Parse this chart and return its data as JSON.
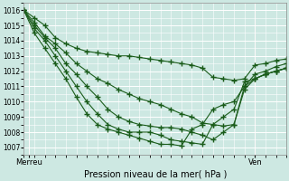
{
  "xlabel": "Pression niveau de la mer( hPa )",
  "xlim": [
    0,
    100
  ],
  "ylim": [
    1006.5,
    1016.5
  ],
  "yticks": [
    1007,
    1008,
    1009,
    1010,
    1011,
    1012,
    1013,
    1014,
    1015,
    1016
  ],
  "xtick_labels": [
    "Merreu",
    "Ven"
  ],
  "xtick_positions": [
    2,
    88
  ],
  "background_color": "#cde8e2",
  "grid_color": "#ffffff",
  "line_color": "#1a5c1a",
  "lines": [
    {
      "x": [
        0,
        4,
        8,
        12,
        16,
        20,
        24,
        28,
        32,
        36,
        40,
        44,
        48,
        52,
        56,
        60,
        64,
        68,
        72,
        76,
        80,
        84,
        88,
        92,
        96,
        100
      ],
      "y": [
        1016.0,
        1015.5,
        1015.0,
        1014.2,
        1013.8,
        1013.5,
        1013.3,
        1013.2,
        1013.1,
        1013.0,
        1013.0,
        1012.9,
        1012.8,
        1012.7,
        1012.6,
        1012.5,
        1012.4,
        1012.2,
        1011.6,
        1011.5,
        1011.4,
        1011.5,
        1012.4,
        1012.5,
        1012.7,
        1012.8
      ]
    },
    {
      "x": [
        0,
        4,
        8,
        12,
        16,
        20,
        24,
        28,
        32,
        36,
        40,
        44,
        48,
        52,
        56,
        60,
        64,
        68,
        72,
        76,
        80,
        84,
        88,
        92,
        96,
        100
      ],
      "y": [
        1016.0,
        1015.2,
        1014.3,
        1013.8,
        1013.2,
        1012.5,
        1012.0,
        1011.5,
        1011.2,
        1010.8,
        1010.5,
        1010.2,
        1010.0,
        1009.8,
        1009.5,
        1009.2,
        1009.0,
        1008.6,
        1008.5,
        1008.4,
        1008.5,
        1011.0,
        1011.8,
        1012.0,
        1012.3,
        1012.5
      ]
    },
    {
      "x": [
        0,
        4,
        8,
        12,
        16,
        20,
        24,
        28,
        32,
        36,
        40,
        44,
        48,
        52,
        56,
        60,
        64,
        68,
        72,
        76,
        80,
        84,
        88,
        92,
        96,
        100
      ],
      "y": [
        1016.0,
        1015.0,
        1014.2,
        1013.5,
        1012.5,
        1011.8,
        1011.0,
        1010.3,
        1009.5,
        1009.0,
        1008.7,
        1008.5,
        1008.4,
        1008.3,
        1008.3,
        1008.2,
        1008.0,
        1007.8,
        1007.5,
        1008.0,
        1008.5,
        1010.8,
        1011.5,
        1011.8,
        1012.0,
        1012.2
      ]
    },
    {
      "x": [
        0,
        4,
        8,
        12,
        16,
        20,
        24,
        28,
        32,
        36,
        40,
        44,
        48,
        52,
        56,
        60,
        64,
        68,
        72,
        76,
        80,
        84,
        88,
        92,
        96,
        100
      ],
      "y": [
        1016.0,
        1014.8,
        1014.0,
        1013.0,
        1012.0,
        1011.0,
        1010.0,
        1009.2,
        1008.5,
        1008.2,
        1008.0,
        1008.0,
        1008.0,
        1007.8,
        1007.5,
        1007.4,
        1007.3,
        1007.2,
        1008.5,
        1009.0,
        1009.5,
        1011.3,
        1011.5,
        1011.8,
        1012.0,
        1012.2
      ]
    },
    {
      "x": [
        0,
        4,
        8,
        12,
        16,
        20,
        24,
        28,
        32,
        36,
        40,
        44,
        48,
        52,
        56,
        60,
        64,
        68,
        72,
        76,
        80,
        84,
        88,
        92,
        96,
        100
      ],
      "y": [
        1016.0,
        1014.5,
        1013.5,
        1012.5,
        1011.5,
        1010.3,
        1009.2,
        1008.5,
        1008.2,
        1008.0,
        1007.8,
        1007.6,
        1007.4,
        1007.2,
        1007.2,
        1007.1,
        1008.2,
        1008.5,
        1009.5,
        1009.8,
        1010.0,
        1011.0,
        1011.5,
        1011.8,
        1012.0,
        1012.2
      ]
    }
  ],
  "marker": "+",
  "markersize": 4,
  "linewidth": 0.8,
  "red_vlines": [
    2,
    88
  ]
}
